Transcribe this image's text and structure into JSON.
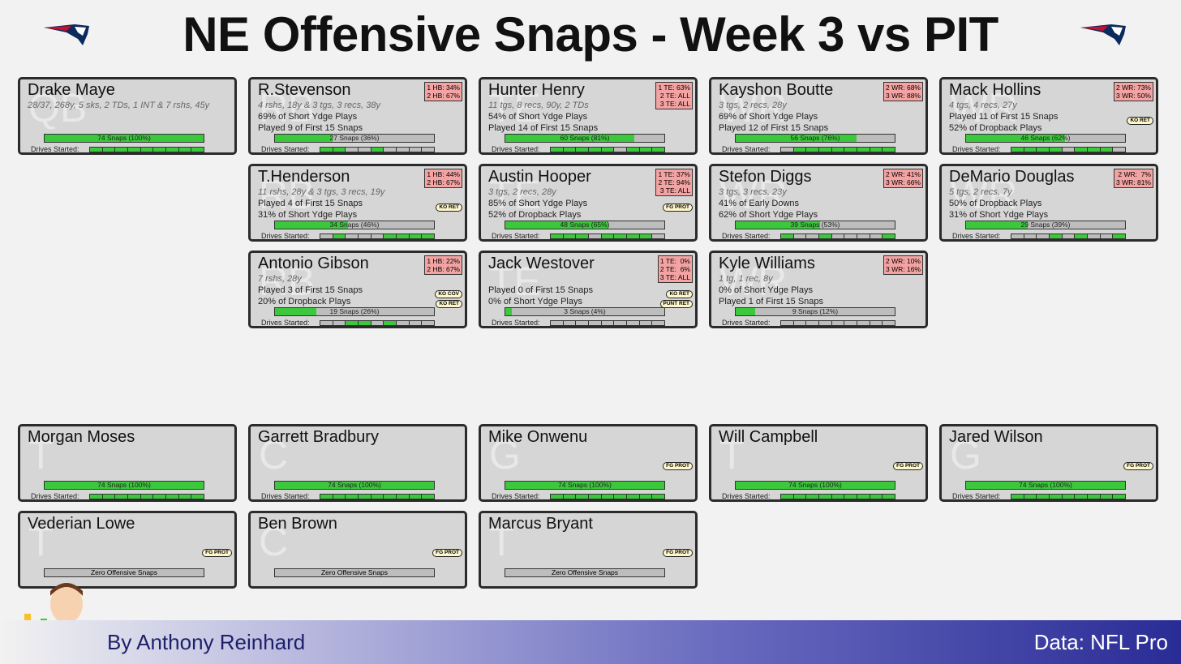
{
  "title": "NE Offensive Snaps - Week 3 vs PIT",
  "footer": {
    "byline": "By Anthony Reinhard",
    "source": "Data: NFL Pro"
  },
  "colors": {
    "snap_fill": "#3cc83c",
    "card_bg": "#d6d6d6",
    "depth_bg": "#f4a3a3",
    "tag_bg": "#fff7cc"
  },
  "logos": {
    "left": "patriots-logo",
    "right": "patriots-logo"
  },
  "skill_players": [
    {
      "pos": "QB",
      "name": "Drake Maye",
      "sub": "28/37, 268y, 5 sks, 2 TDs, 1 INT & 7 rshs, 45y",
      "line1": "",
      "line2": "",
      "depth": "",
      "tags": [],
      "snaps": "74 Snaps (100%)",
      "pct": 100,
      "drives": [
        1,
        1,
        1,
        1,
        1,
        1,
        1,
        1,
        1
      ]
    },
    {
      "pos": "RB",
      "name": "R.Stevenson",
      "sub": "4 rshs, 18y & 3 tgs, 3 recs, 38y",
      "line1": "69% of Short Ydge Plays",
      "line2": "Played 9 of First 15 Snaps",
      "depth": "1 HB: 34%\n2 HB: 67%",
      "tags": [],
      "snaps": "27 Snaps (36%)",
      "pct": 36,
      "drives": [
        1,
        1,
        0,
        0,
        1,
        0,
        0,
        0,
        0
      ]
    },
    {
      "pos": "TE",
      "name": "Hunter Henry",
      "sub": "11 tgs, 8 recs, 90y, 2 TDs",
      "line1": "54% of Short Ydge Plays",
      "line2": "Played 14 of First 15 Snaps",
      "depth": "1 TE: 63%\n2 TE: ALL\n3 TE: ALL",
      "tags": [],
      "snaps": "60 Snaps (81%)",
      "pct": 81,
      "drives": [
        1,
        1,
        1,
        1,
        1,
        0,
        1,
        1,
        1
      ]
    },
    {
      "pos": "WR",
      "name": "Kayshon Boutte",
      "sub": "3 tgs, 2 recs, 28y",
      "line1": "69% of Short Ydge Plays",
      "line2": "Played 12 of First 15 Snaps",
      "depth": "2 WR: 68%\n3 WR: 88%",
      "tags": [],
      "snaps": "56 Snaps (76%)",
      "pct": 76,
      "drives": [
        0,
        1,
        1,
        1,
        1,
        1,
        1,
        1,
        1
      ]
    },
    {
      "pos": "WR",
      "name": "Mack Hollins",
      "sub": "4 tgs, 4 recs, 27y",
      "line1": "Played 11 of First 15 Snaps",
      "line2": "52% of Dropback Plays",
      "depth": "2 WR: 73%\n3 WR: 50%",
      "tags": [
        "KO RET"
      ],
      "snaps": "46 Snaps (62%)",
      "pct": 62,
      "drives": [
        1,
        1,
        1,
        1,
        0,
        1,
        1,
        1,
        0
      ]
    },
    {
      "pos": "RB",
      "name": "T.Henderson",
      "sub": "11 rshs, 28y & 3 tgs, 3 recs, 19y",
      "line1": "Played 4 of First 15 Snaps",
      "line2": "31% of Short Ydge Plays",
      "depth": "1 HB: 44%\n2 HB: 67%",
      "tags": [
        "KO RET"
      ],
      "snaps": "34 Snaps (46%)",
      "pct": 46,
      "drives": [
        0,
        1,
        0,
        0,
        0,
        1,
        1,
        1,
        1
      ]
    },
    {
      "pos": "TE",
      "name": "Austin Hooper",
      "sub": "3 tgs, 2 recs, 28y",
      "line1": "85% of Short Ydge Plays",
      "line2": "52% of Dropback Plays",
      "depth": "1 TE: 37%\n2 TE: 94%\n3 TE: ALL",
      "tags": [
        "FG PROT"
      ],
      "snaps": "48 Snaps (65%)",
      "pct": 65,
      "drives": [
        1,
        1,
        1,
        0,
        1,
        1,
        1,
        1,
        0
      ]
    },
    {
      "pos": "WR",
      "name": "Stefon Diggs",
      "sub": "3 tgs, 3 recs, 23y",
      "line1": "41% of Early Downs",
      "line2": "62% of Short Ydge Plays",
      "depth": "2 WR: 41%\n3 WR: 66%",
      "tags": [],
      "snaps": "39 Snaps (53%)",
      "pct": 53,
      "drives": [
        1,
        0,
        0,
        1,
        0,
        0,
        0,
        0,
        1
      ]
    },
    {
      "pos": "WR",
      "name": "DeMario Douglas",
      "sub": "5 tgs, 2 recs, 7y",
      "line1": "50% of Dropback Plays",
      "line2": "31% of Short Ydge Plays",
      "depth": "2 WR:  7%\n3 WR: 81%",
      "tags": [],
      "snaps": "29 Snaps (39%)",
      "pct": 39,
      "drives": [
        0,
        0,
        0,
        1,
        0,
        1,
        0,
        0,
        1
      ]
    },
    {
      "pos": "RB",
      "name": "Antonio Gibson",
      "sub": "7 rshs, 28y",
      "line1": "Played 3 of First 15 Snaps",
      "line2": "20% of Dropback Plays",
      "depth": "1 HB: 22%\n2 HB: 67%",
      "tags": [
        "KO COV",
        "KO RET"
      ],
      "snaps": "19 Snaps (26%)",
      "pct": 26,
      "drives": [
        0,
        0,
        1,
        1,
        0,
        1,
        0,
        0,
        0
      ]
    },
    {
      "pos": "TE",
      "name": "Jack Westover",
      "sub": "",
      "line1": "Played 0 of First 15 Snaps",
      "line2": "0% of Short Ydge Plays",
      "depth": "1 TE:  0%\n2 TE:  6%\n3 TE: ALL",
      "tags": [
        "KO RET",
        "PUNT RET"
      ],
      "snaps": "3 Snaps (4%)",
      "pct": 4,
      "drives": [
        0,
        0,
        0,
        0,
        0,
        0,
        0,
        0,
        0
      ]
    },
    {
      "pos": "WR",
      "name": "Kyle Williams",
      "sub": "1 tg, 1 rec, 8y",
      "line1": "0% of Short Ydge Plays",
      "line2": "Played 1 of First 15 Snaps",
      "depth": "2 WR: 10%\n3 WR: 16%",
      "tags": [],
      "snaps": "9 Snaps (12%)",
      "pct": 12,
      "drives": [
        0,
        0,
        0,
        0,
        0,
        0,
        0,
        0,
        0
      ]
    }
  ],
  "line_players": [
    {
      "pos": "T",
      "name": "Morgan Moses",
      "tags": [],
      "snaps": "74 Snaps (100%)",
      "pct": 100,
      "drives": [
        1,
        1,
        1,
        1,
        1,
        1,
        1,
        1,
        1
      ]
    },
    {
      "pos": "C",
      "name": "Garrett Bradbury",
      "tags": [],
      "snaps": "74 Snaps (100%)",
      "pct": 100,
      "drives": [
        1,
        1,
        1,
        1,
        1,
        1,
        1,
        1,
        1
      ]
    },
    {
      "pos": "G",
      "name": "Mike Onwenu",
      "tags": [
        "FG PROT"
      ],
      "snaps": "74 Snaps (100%)",
      "pct": 100,
      "drives": [
        1,
        1,
        1,
        1,
        1,
        1,
        1,
        1,
        1
      ]
    },
    {
      "pos": "T",
      "name": "Will Campbell",
      "tags": [
        "FG PROT"
      ],
      "snaps": "74 Snaps (100%)",
      "pct": 100,
      "drives": [
        1,
        1,
        1,
        1,
        1,
        1,
        1,
        1,
        1
      ]
    },
    {
      "pos": "G",
      "name": "Jared Wilson",
      "tags": [
        "FG PROT"
      ],
      "snaps": "74 Snaps (100%)",
      "pct": 100,
      "drives": [
        1,
        1,
        1,
        1,
        1,
        1,
        1,
        1,
        1
      ]
    },
    {
      "pos": "T",
      "name": "Vederian Lowe",
      "tags": [
        "FG PROT"
      ],
      "snaps": "Zero Offensive Snaps",
      "pct": 0,
      "drives": []
    },
    {
      "pos": "C",
      "name": "Ben Brown",
      "tags": [
        "FG PROT"
      ],
      "snaps": "Zero Offensive Snaps",
      "pct": 0,
      "drives": []
    },
    {
      "pos": "T",
      "name": "Marcus Bryant",
      "tags": [
        "FG PROT"
      ],
      "snaps": "Zero Offensive Snaps",
      "pct": 0,
      "drives": []
    }
  ],
  "labels": {
    "drives_started": "Drives Started:"
  }
}
